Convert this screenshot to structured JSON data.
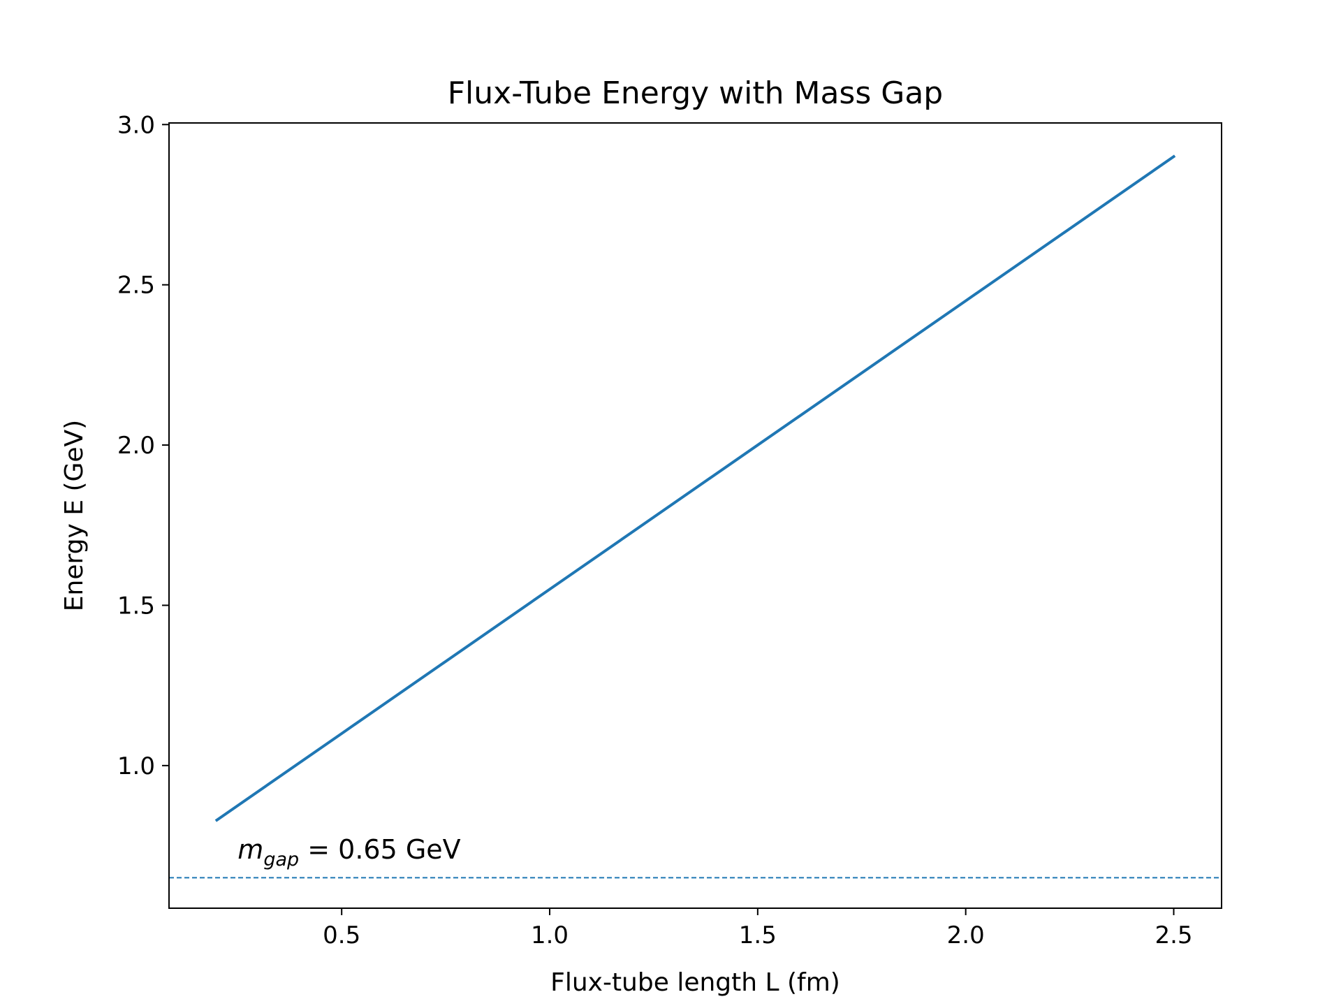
{
  "chart_data": {
    "type": "line",
    "title": "Flux-Tube Energy with Mass Gap",
    "xlabel": "Flux-tube length L (fm)",
    "ylabel": "Energy E (GeV)",
    "xlim": [
      0.085,
      2.615
    ],
    "ylim": [
      0.555,
      3.005
    ],
    "x_ticks": [
      0.5,
      1.0,
      1.5,
      2.0,
      2.5
    ],
    "x_tick_labels": [
      "0.5",
      "1.0",
      "1.5",
      "2.0",
      "2.5"
    ],
    "y_ticks": [
      1.0,
      1.5,
      2.0,
      2.5,
      3.0
    ],
    "y_tick_labels": [
      "1.0",
      "1.5",
      "2.0",
      "2.5",
      "3.0"
    ],
    "grid": false,
    "series": [
      {
        "color": "#1f77b4",
        "x": [
          0.2,
          0.5,
          1.0,
          1.5,
          2.0,
          2.5
        ],
        "y": [
          0.83,
          1.1,
          1.55,
          2.0,
          2.45,
          2.9
        ]
      }
    ],
    "reference_line": {
      "y": 0.65,
      "style": "dashed",
      "color": "#1f77b4"
    },
    "annotation": {
      "symbol": "m",
      "subscript": "gap",
      "relation": " = ",
      "value": "0.65 GeV",
      "x": 0.25,
      "y": 0.71
    }
  }
}
